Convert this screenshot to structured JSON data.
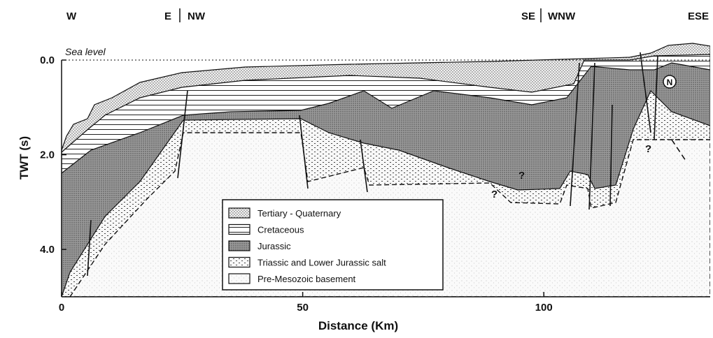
{
  "header": {
    "orientations": [
      "W",
      "E",
      "NW",
      "SE",
      "WNW",
      "ESE"
    ]
  },
  "axes": {
    "x": {
      "title": "Distance (Km)",
      "lim": [
        0,
        134.5
      ],
      "ticks": [
        0,
        50,
        100
      ]
    },
    "y": {
      "title": "TWT (s)",
      "lim": [
        0,
        5
      ],
      "ticks": [
        {
          "value": 0,
          "label": "0.0"
        },
        {
          "value": 2,
          "label": "2.0"
        },
        {
          "value": 4,
          "label": "4.0"
        }
      ]
    }
  },
  "annotations": {
    "sea_level": "Sea level",
    "questions": [
      "?",
      "?",
      "?"
    ],
    "north": "N"
  },
  "legend": {
    "items": [
      "Tertiary - Quaternary",
      "Cretaceous",
      "Jurassic",
      "Triassic and Lower Jurassic salt",
      "Pre-Mesozoic basement"
    ]
  }
}
